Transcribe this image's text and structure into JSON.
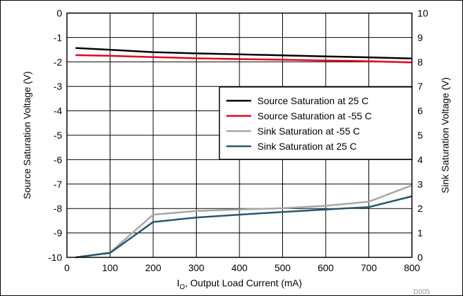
{
  "chart_data": {
    "type": "line",
    "x": [
      20,
      100,
      200,
      300,
      400,
      500,
      600,
      700,
      800
    ],
    "xlabel_main": "I",
    "xlabel_sub": "O",
    "xlabel_rest": ", Output Load Current (mA)",
    "ylabel": "Source Saturation Voltage (V)",
    "y2label": "Sink Saturation Voltage (V)",
    "xlim": [
      0,
      800
    ],
    "ylim": [
      -10,
      0
    ],
    "y2lim": [
      0,
      10
    ],
    "xticks": [
      "0",
      "100",
      "200",
      "300",
      "400",
      "500",
      "600",
      "700",
      "800"
    ],
    "yticks": [
      "0",
      "-1",
      "-2",
      "-3",
      "-4",
      "-5",
      "-6",
      "-7",
      "-8",
      "-9",
      "-10"
    ],
    "y2ticks": [
      "10",
      "9",
      "8",
      "7",
      "6",
      "5",
      "4",
      "3",
      "2",
      "1",
      "0"
    ],
    "grid": true,
    "legend_position": "center-right",
    "figure_id": "D005",
    "series": [
      {
        "name": "Source Saturation at 25 C",
        "axis": "left",
        "color": "#000000",
        "values": [
          -1.43,
          -1.5,
          -1.6,
          -1.65,
          -1.69,
          -1.73,
          -1.77,
          -1.81,
          -1.86
        ]
      },
      {
        "name": "Source Saturation at -55 C",
        "axis": "left",
        "color": "#e8001c",
        "values": [
          -1.72,
          -1.75,
          -1.8,
          -1.85,
          -1.88,
          -1.91,
          -1.94,
          -1.97,
          -2.02
        ]
      },
      {
        "name": "Sink Saturation at -55 C",
        "axis": "right",
        "color": "#a6a6a6",
        "values": [
          0.0,
          0.2,
          1.75,
          1.9,
          1.96,
          2.01,
          2.11,
          2.28,
          2.95
        ]
      },
      {
        "name": "Sink Saturation at 25 C",
        "axis": "right",
        "color": "#27566d",
        "values": [
          0.0,
          0.18,
          1.45,
          1.63,
          1.75,
          1.86,
          1.96,
          2.06,
          2.5
        ]
      }
    ]
  }
}
